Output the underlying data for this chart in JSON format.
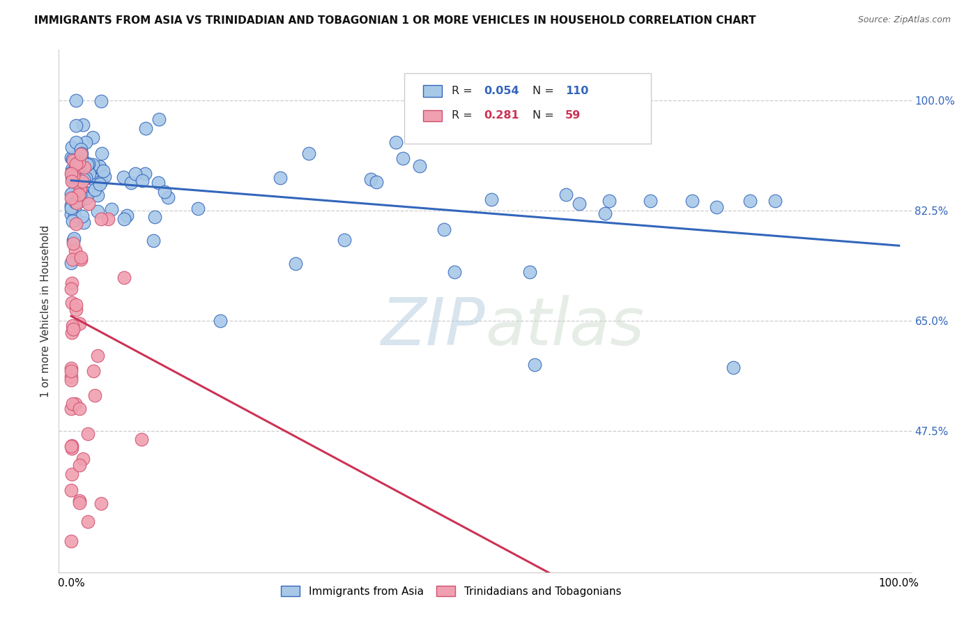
{
  "title": "IMMIGRANTS FROM ASIA VS TRINIDADIAN AND TOBAGONIAN 1 OR MORE VEHICLES IN HOUSEHOLD CORRELATION CHART",
  "source": "Source: ZipAtlas.com",
  "ylabel": "1 or more Vehicles in Household",
  "legend_label1": "Immigrants from Asia",
  "legend_label2": "Trinidadians and Tobagonians",
  "R_asia": 0.054,
  "N_asia": 110,
  "R_trint": 0.281,
  "N_trint": 59,
  "color_asia": "#a8c8e8",
  "color_trint": "#f0a0b0",
  "line_color_asia": "#3366bb",
  "line_color_trint": "#cc3355",
  "background_color": "#ffffff",
  "ytick_vals": [
    1.0,
    0.825,
    0.65,
    0.475
  ],
  "ytick_labels": [
    "100.0%",
    "82.5%",
    "65.0%",
    "47.5%"
  ],
  "ylim_min": 0.25,
  "ylim_max": 1.08
}
